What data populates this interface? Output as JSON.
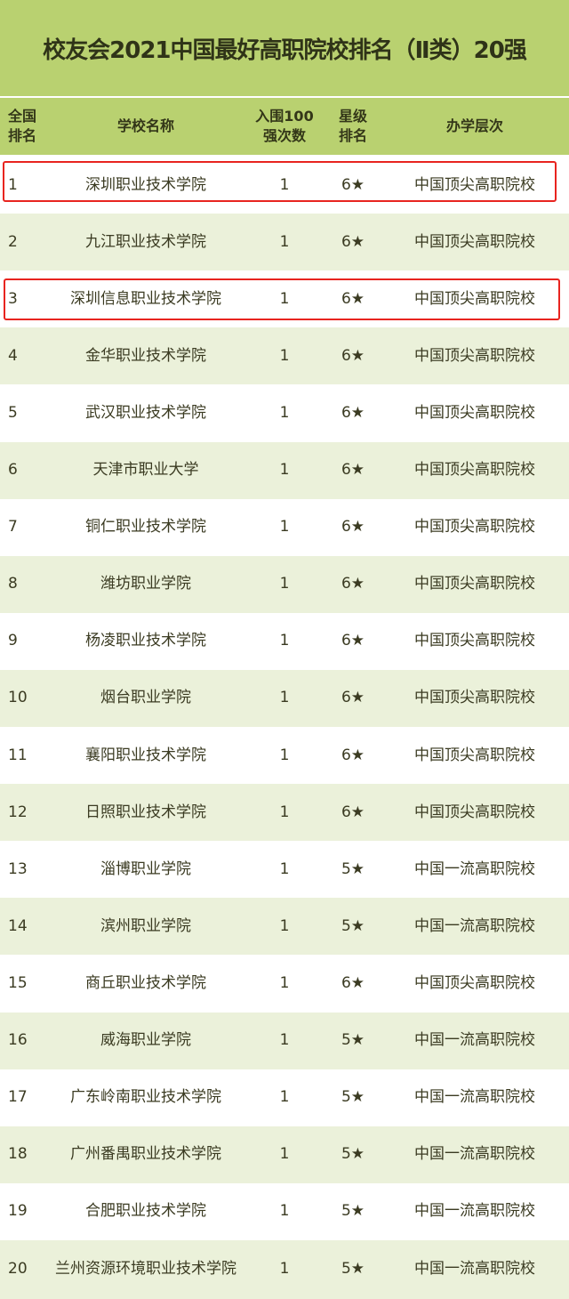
{
  "title": "校友会2021中国最好高职院校排名（Ⅱ类）20强",
  "headers": {
    "rank": "全国\n排名",
    "rank_l1": "全国",
    "rank_l2": "排名",
    "name": "学校名称",
    "count_l1": "入围100",
    "count_l2": "强次数",
    "star_l1": "星级",
    "star_l2": "排名",
    "level": "办学层次"
  },
  "highlighted_ranks": [
    1,
    3
  ],
  "colors": {
    "header_bg": "#b9d170",
    "alt_row_bg": "#ebf1da",
    "highlight_border": "#e8241f"
  },
  "rows": [
    {
      "rank": "1",
      "name": "深圳职业技术学院",
      "count": "1",
      "star": "6★",
      "level": "中国顶尖高职院校"
    },
    {
      "rank": "2",
      "name": "九江职业技术学院",
      "count": "1",
      "star": "6★",
      "level": "中国顶尖高职院校"
    },
    {
      "rank": "3",
      "name": "深圳信息职业技术学院",
      "count": "1",
      "star": "6★",
      "level": "中国顶尖高职院校"
    },
    {
      "rank": "4",
      "name": "金华职业技术学院",
      "count": "1",
      "star": "6★",
      "level": "中国顶尖高职院校"
    },
    {
      "rank": "5",
      "name": "武汉职业技术学院",
      "count": "1",
      "star": "6★",
      "level": "中国顶尖高职院校"
    },
    {
      "rank": "6",
      "name": "天津市职业大学",
      "count": "1",
      "star": "6★",
      "level": "中国顶尖高职院校"
    },
    {
      "rank": "7",
      "name": "铜仁职业技术学院",
      "count": "1",
      "star": "6★",
      "level": "中国顶尖高职院校"
    },
    {
      "rank": "8",
      "name": "潍坊职业学院",
      "count": "1",
      "star": "6★",
      "level": "中国顶尖高职院校"
    },
    {
      "rank": "9",
      "name": "杨凌职业技术学院",
      "count": "1",
      "star": "6★",
      "level": "中国顶尖高职院校"
    },
    {
      "rank": "10",
      "name": "烟台职业学院",
      "count": "1",
      "star": "6★",
      "level": "中国顶尖高职院校"
    },
    {
      "rank": "11",
      "name": "襄阳职业技术学院",
      "count": "1",
      "star": "6★",
      "level": "中国顶尖高职院校"
    },
    {
      "rank": "12",
      "name": "日照职业技术学院",
      "count": "1",
      "star": "6★",
      "level": "中国顶尖高职院校"
    },
    {
      "rank": "13",
      "name": "淄博职业学院",
      "count": "1",
      "star": "5★",
      "level": "中国一流高职院校"
    },
    {
      "rank": "14",
      "name": "滨州职业学院",
      "count": "1",
      "star": "5★",
      "level": "中国一流高职院校"
    },
    {
      "rank": "15",
      "name": "商丘职业技术学院",
      "count": "1",
      "star": "6★",
      "level": "中国顶尖高职院校"
    },
    {
      "rank": "16",
      "name": "威海职业学院",
      "count": "1",
      "star": "5★",
      "level": "中国一流高职院校"
    },
    {
      "rank": "17",
      "name": "广东岭南职业技术学院",
      "count": "1",
      "star": "5★",
      "level": "中国一流高职院校"
    },
    {
      "rank": "18",
      "name": "广州番禺职业技术学院",
      "count": "1",
      "star": "5★",
      "level": "中国一流高职院校"
    },
    {
      "rank": "19",
      "name": "合肥职业技术学院",
      "count": "1",
      "star": "5★",
      "level": "中国一流高职院校"
    },
    {
      "rank": "20",
      "name": "兰州资源环境职业技术学院",
      "count": "1",
      "star": "5★",
      "level": "中国一流高职院校"
    }
  ]
}
